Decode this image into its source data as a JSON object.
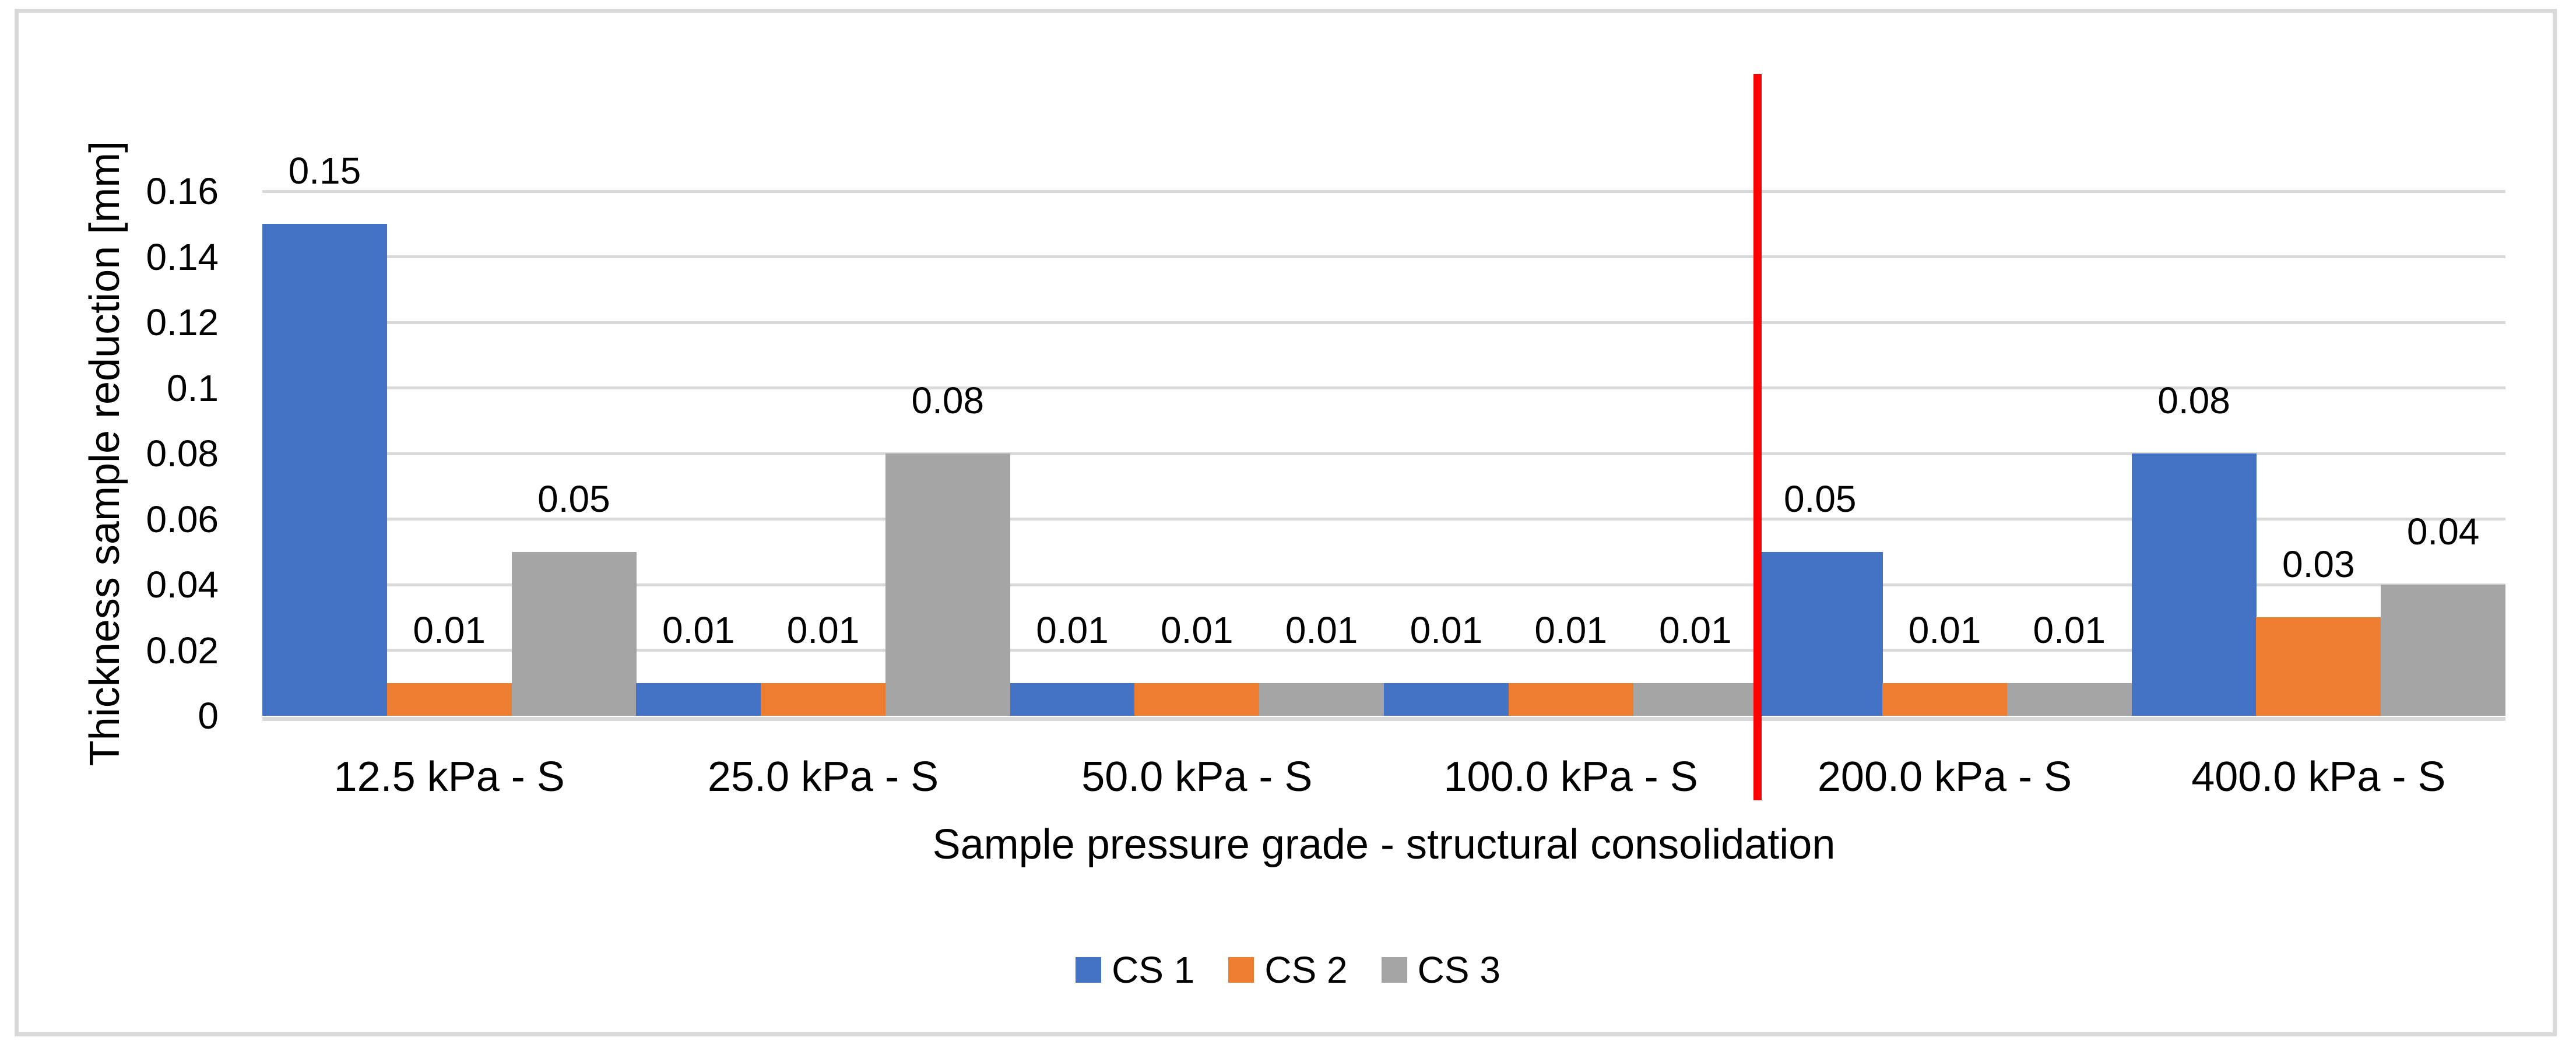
{
  "chart_data": {
    "type": "bar",
    "title": "",
    "categories": [
      "12.5 kPa - S",
      "25.0 kPa - S",
      "50.0 kPa - S",
      "100.0 kPa - S",
      "200.0 kPa - S",
      "400.0 kPa - S"
    ],
    "series": [
      {
        "name": "CS 1",
        "color": "#4472C4",
        "values": [
          0.15,
          0.01,
          0.01,
          0.01,
          0.05,
          0.08
        ]
      },
      {
        "name": "CS 2",
        "color": "#ED7D31",
        "values": [
          0.01,
          0.01,
          0.01,
          0.01,
          0.01,
          0.03
        ]
      },
      {
        "name": "CS 3",
        "color": "#A5A5A5",
        "values": [
          0.05,
          0.08,
          0.01,
          0.01,
          0.01,
          0.04
        ]
      }
    ],
    "data_labels": [
      "0.15",
      "0.01",
      "0.05",
      "0.01",
      "0.01",
      "0.08",
      "0.01",
      "0.01",
      "0.01",
      "0.01",
      "0.01",
      "0.01",
      "0.05",
      "0.01",
      "0.01",
      "0.08",
      "0.03",
      "0.04"
    ],
    "xlabel": "Sample pressure grade - structural consolidation",
    "ylabel": "Thickness sample reduction [mm]",
    "ylim": [
      0,
      0.16
    ],
    "yticks": [
      {
        "value": 0,
        "label": "0"
      },
      {
        "value": 0.02,
        "label": "0.02"
      },
      {
        "value": 0.04,
        "label": "0.04"
      },
      {
        "value": 0.06,
        "label": "0.06"
      },
      {
        "value": 0.08,
        "label": "0.08"
      },
      {
        "value": 0.1,
        "label": "0.1"
      },
      {
        "value": 0.12,
        "label": "0.12"
      },
      {
        "value": 0.14,
        "label": "0.14"
      },
      {
        "value": 0.16,
        "label": "0.16"
      }
    ],
    "grid": true,
    "gap_width_percent": 0,
    "legend_position": "bottom",
    "annotations": [
      {
        "type": "vertical-line",
        "color": "#FF0000",
        "between": [
          "100.0 kPa - S",
          "200.0 kPa - S"
        ]
      }
    ],
    "colors": {
      "gridline": "#D9D9D9",
      "axis_line": "#D9D9D9",
      "frame_border": "#D9D9D9",
      "text": "#000000",
      "background": "#FFFFFF"
    }
  }
}
